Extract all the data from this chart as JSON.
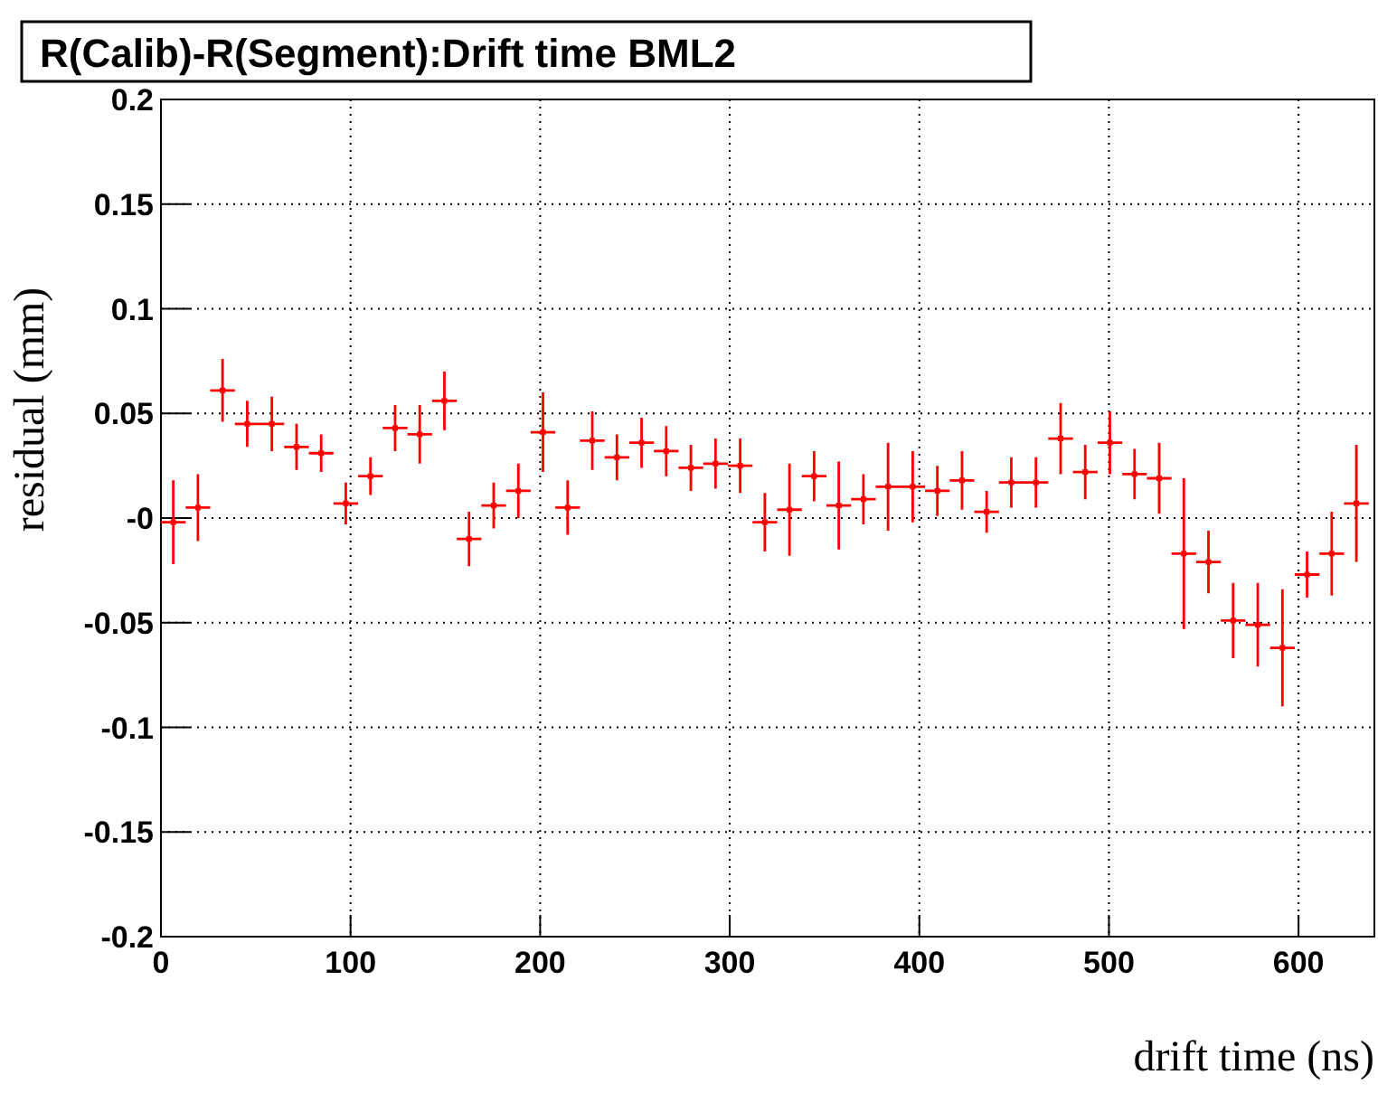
{
  "chart_data": {
    "type": "scatter",
    "title": "R(Calib)-R(Segment):Drift time BML2",
    "xlabel": "drift time (ns)",
    "ylabel": "residual (mm)",
    "x": [
      6.5,
      19.5,
      32.5,
      45.5,
      58.5,
      71.5,
      84.5,
      97.5,
      110.5,
      123.5,
      136.5,
      149.5,
      162.5,
      175.5,
      188.5,
      201.5,
      214.5,
      227.5,
      240.5,
      253.5,
      266.5,
      279.5,
      292.5,
      305.5,
      318.5,
      331.5,
      344.5,
      357.5,
      370.5,
      383.5,
      396.5,
      409.5,
      422.5,
      435.5,
      448.5,
      461.5,
      474.5,
      487.5,
      500.5,
      513.5,
      526.5,
      539.5,
      552.5,
      565.5,
      578.5,
      591.5,
      604.5,
      617.5,
      630.5
    ],
    "series": [
      {
        "color": "#ff0000",
        "values": [
          -0.002,
          0.005,
          0.061,
          0.045,
          0.045,
          0.034,
          0.031,
          0.007,
          0.02,
          0.043,
          0.04,
          0.056,
          -0.01,
          0.006,
          0.013,
          0.041,
          0.005,
          0.037,
          0.029,
          0.036,
          0.032,
          0.024,
          0.026,
          0.025,
          -0.002,
          0.004,
          0.02,
          0.006,
          0.009,
          0.015,
          0.015,
          0.013,
          0.018,
          0.003,
          0.017,
          0.017,
          0.038,
          0.022,
          0.036,
          0.021,
          0.019,
          -0.017,
          -0.021,
          -0.049,
          -0.051,
          -0.062,
          -0.027,
          -0.017,
          0.007
        ],
        "errors": [
          0.02,
          0.016,
          0.015,
          0.011,
          0.013,
          0.011,
          0.009,
          0.01,
          0.009,
          0.011,
          0.014,
          0.014,
          0.013,
          0.011,
          0.013,
          0.019,
          0.013,
          0.014,
          0.011,
          0.012,
          0.012,
          0.011,
          0.012,
          0.013,
          0.014,
          0.022,
          0.012,
          0.021,
          0.012,
          0.021,
          0.017,
          0.012,
          0.014,
          0.01,
          0.012,
          0.012,
          0.017,
          0.013,
          0.015,
          0.012,
          0.017,
          0.036,
          0.015,
          0.018,
          0.02,
          0.028,
          0.011,
          0.02,
          0.028
        ],
        "xerrors": [
          6.5,
          6.5,
          6.5,
          6.5,
          6.5,
          6.5,
          6.5,
          6.5,
          6.5,
          6.5,
          6.5,
          6.5,
          6.5,
          6.5,
          6.5,
          6.5,
          6.5,
          6.5,
          6.5,
          6.5,
          6.5,
          6.5,
          6.5,
          6.5,
          6.5,
          6.5,
          6.5,
          6.5,
          6.5,
          6.5,
          6.5,
          6.5,
          6.5,
          6.5,
          6.5,
          6.5,
          6.5,
          6.5,
          6.5,
          6.5,
          6.5,
          6.5,
          6.5,
          6.5,
          6.5,
          6.5,
          6.5,
          6.5,
          6.5
        ]
      }
    ],
    "xlim": [
      0,
      640
    ],
    "xticks": [
      0,
      100,
      200,
      300,
      400,
      500,
      600
    ],
    "ylim": [
      -0.2,
      0.2
    ],
    "yticks": [
      -0.2,
      -0.15,
      -0.1,
      -0.05,
      {
        "value": 0,
        "label": "-0"
      },
      0.05,
      0.1,
      0.15,
      0.2
    ],
    "grid": true
  }
}
